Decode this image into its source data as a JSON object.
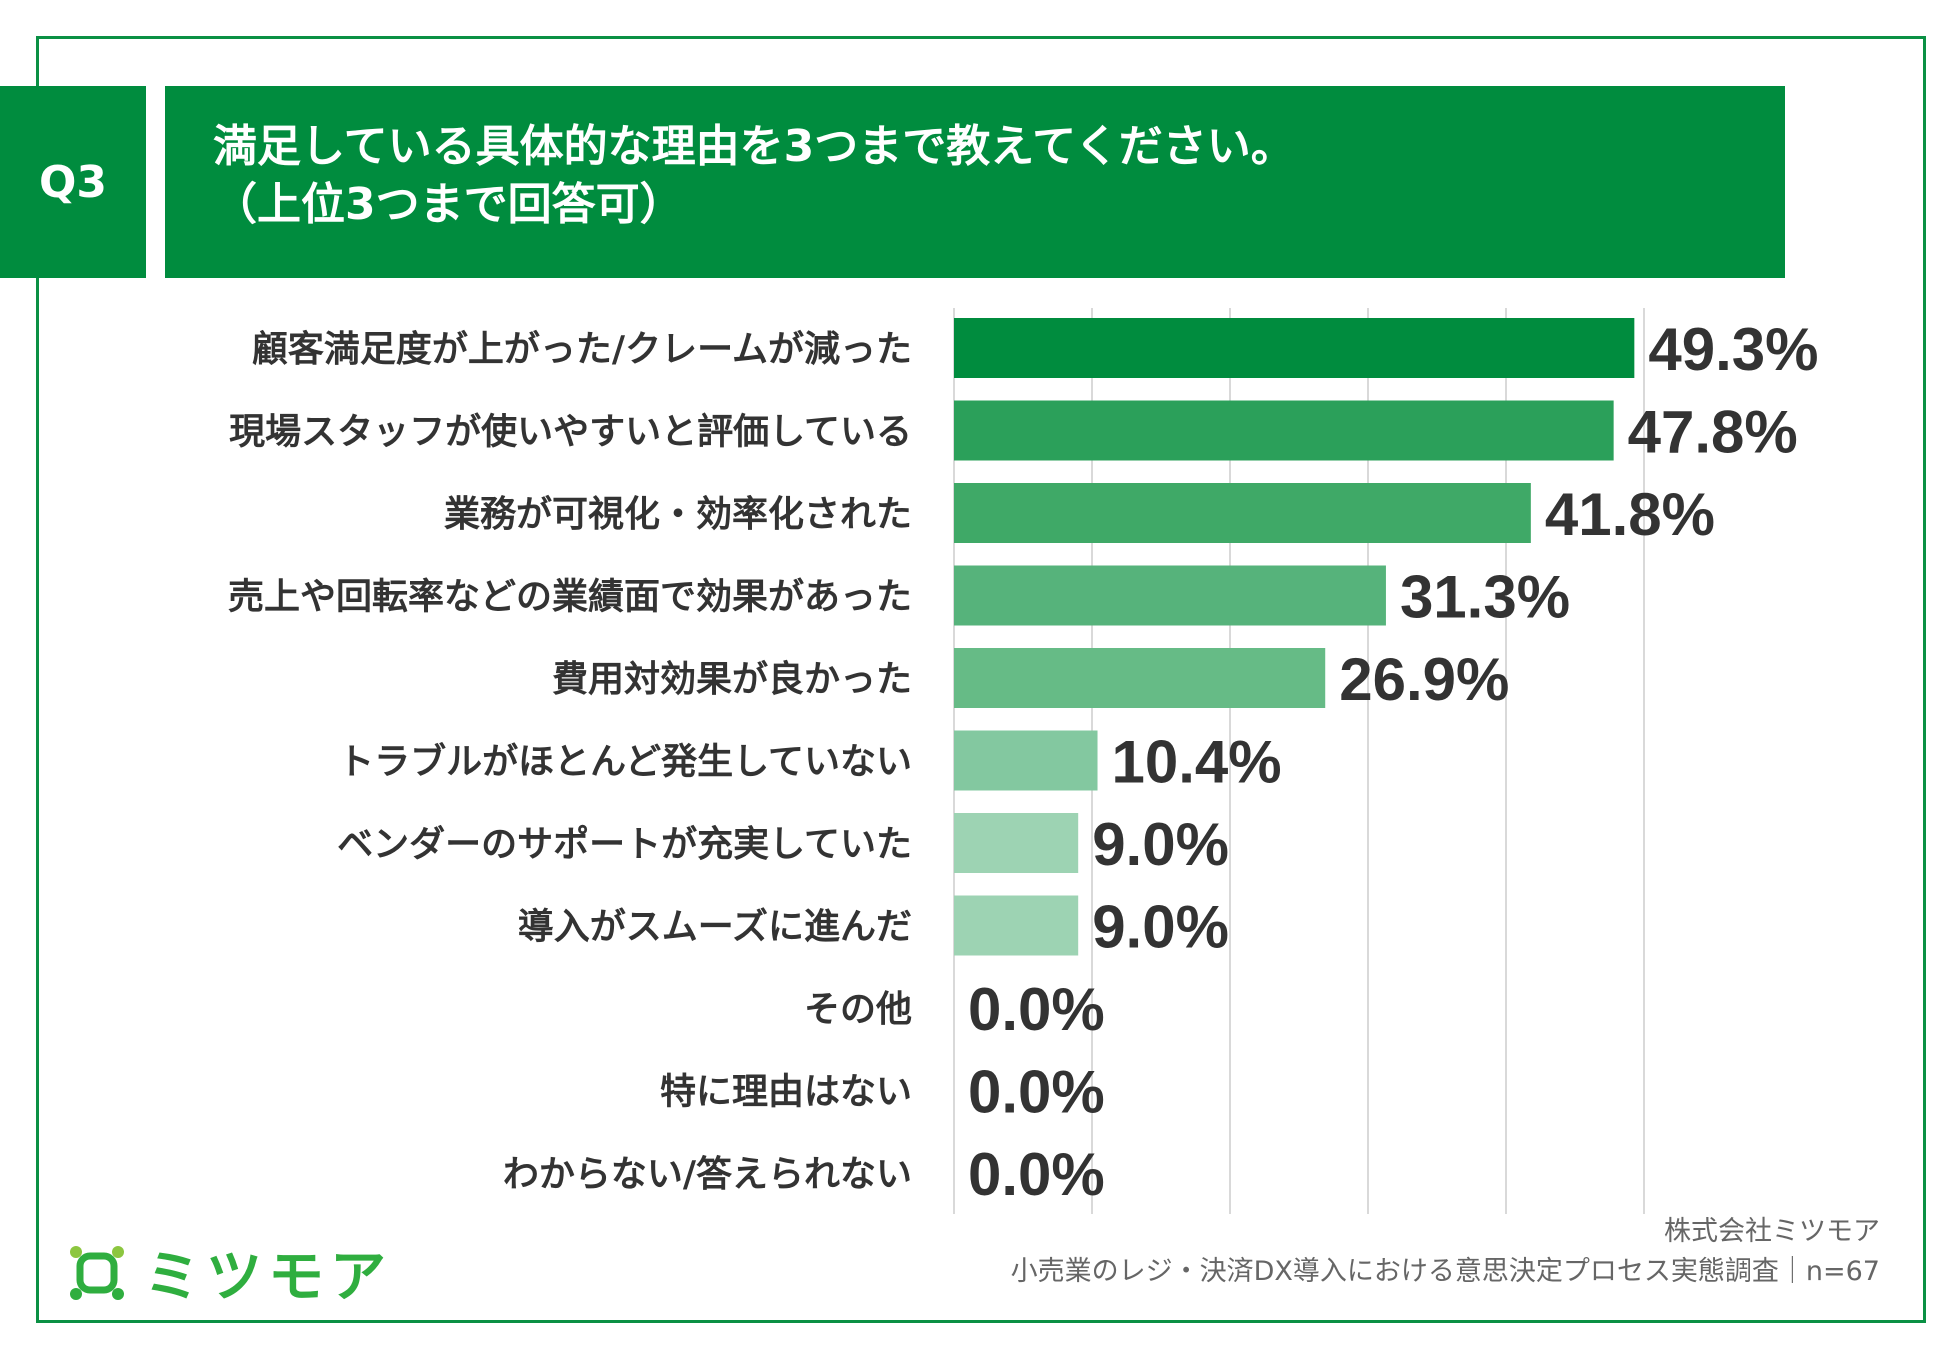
{
  "question": {
    "tag": "Q3",
    "line1": "満足している具体的な理由を3つまで教えてください。",
    "line2": "（上位3つまで回答可）"
  },
  "colors": {
    "frame": "#0a9044",
    "header_bg": "#008c3e",
    "bar_palette": [
      "#008c3e",
      "#2ba05a",
      "#3fa967",
      "#56b37b",
      "#66bb86",
      "#83c8a0",
      "#9dd3b3",
      "#9dd3b3",
      "#a9d9bc",
      "#a9d9bc",
      "#a9d9bc"
    ]
  },
  "chart_data": {
    "type": "bar",
    "orientation": "horizontal",
    "categories": [
      "顧客満足度が上がった/クレームが減った",
      "現場スタッフが使いやすいと評価している",
      "業務が可視化・効率化された",
      "売上や回転率などの業績面で効果があった",
      "費用対効果が良かった",
      "トラブルがほとんど発生していない",
      "ベンダーのサポートが充実していた",
      "導入がスムーズに進んだ",
      "その他",
      "特に理由はない",
      "わからない/答えられない"
    ],
    "values": [
      49.3,
      47.8,
      41.8,
      31.3,
      26.9,
      10.4,
      9.0,
      9.0,
      0.0,
      0.0,
      0.0
    ],
    "value_labels": [
      "49.3%",
      "47.8%",
      "41.8%",
      "31.3%",
      "26.9%",
      "10.4%",
      "9.0%",
      "9.0%",
      "0.0%",
      "0.0%",
      "0.0%"
    ],
    "xlim": [
      0,
      50
    ],
    "grid": true
  },
  "logo": {
    "name": "ミツモア",
    "icon": "mitsumore-logo-icon"
  },
  "credit": {
    "company": "株式会社ミツモア",
    "survey": "小売業のレジ・決済DX導入における意思決定プロセス実態調査｜n=67"
  }
}
